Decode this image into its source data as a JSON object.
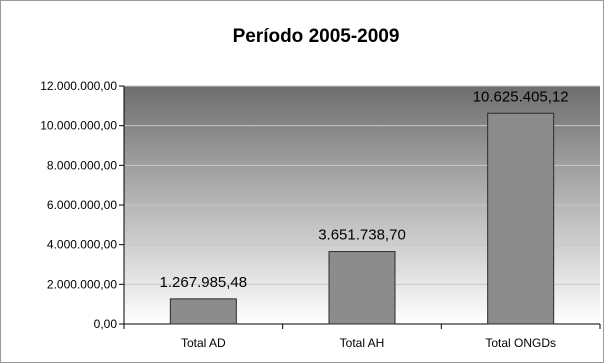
{
  "chart_data": {
    "type": "bar",
    "title": "Período 2005-2009",
    "xlabel": "",
    "ylabel": "",
    "categories": [
      "Total AD",
      "Total AH",
      "Total ONGDs"
    ],
    "values": [
      1267985.48,
      3651738.7,
      10625405.12
    ],
    "data_labels": [
      "1.267.985,48",
      "3.651.738,70",
      "10.625.405,12"
    ],
    "ylim": [
      0,
      12000000
    ],
    "yticks": [
      0,
      2000000,
      4000000,
      6000000,
      8000000,
      10000000,
      12000000
    ],
    "ytick_labels": [
      "0,00",
      "2.000.000,00",
      "4.000.000,00",
      "6.000.000,00",
      "8.000.000,00",
      "10.000.000,00",
      "12.000.000,00"
    ],
    "grid": true,
    "legend": "none",
    "colors": {
      "bar_fill": "#8c8c8c",
      "bar_stroke": "#2a2a2a",
      "plot_gradient_top": "#6e6e6e",
      "plot_gradient_bottom": "#ffffff",
      "gridline": "#c8c8c8"
    }
  }
}
